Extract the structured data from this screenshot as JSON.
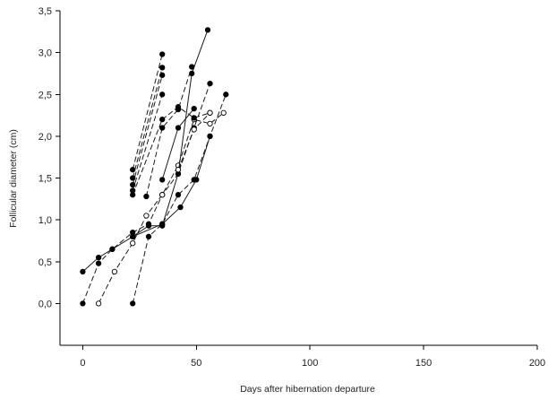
{
  "chart_data": {
    "type": "scatter",
    "title": "",
    "xlabel": "Days after hibernation departure",
    "ylabel": "Follicular diameter (cm)",
    "xlim": [
      -10,
      200
    ],
    "ylim": [
      -0.5,
      3.5
    ],
    "grid": false,
    "x_ticks": [
      0,
      50,
      100,
      150,
      200
    ],
    "x_tick_labels": [
      "0",
      "50",
      "100",
      "150",
      "200"
    ],
    "y_ticks": [
      0,
      0.5,
      1.0,
      1.5,
      2.0,
      2.5,
      3.0,
      3.5
    ],
    "y_tick_labels": [
      "0,0",
      "0,5",
      "1,0",
      "1,5",
      "2,0",
      "2,5",
      "3,0",
      "3,5"
    ],
    "series": [
      {
        "marker": "filled",
        "line": "solid",
        "x": [
          0,
          7,
          13,
          22,
          35,
          43,
          50,
          56
        ],
        "y": [
          0.38,
          0.55,
          0.65,
          0.8,
          0.95,
          1.15,
          1.48,
          2.0
        ]
      },
      {
        "marker": "filled",
        "line": "dashed",
        "x": [
          0,
          7,
          13,
          22,
          29,
          35,
          42,
          49,
          56
        ],
        "y": [
          0.0,
          0.48,
          0.65,
          0.85,
          0.95,
          1.3,
          1.55,
          2.1,
          2.63
        ]
      },
      {
        "marker": "open",
        "line": "dashed",
        "x": [
          7,
          14,
          22,
          28,
          35,
          42,
          49,
          56,
          62
        ],
        "y": [
          0.0,
          0.38,
          0.72,
          1.05,
          1.3,
          1.65,
          2.2,
          2.15,
          2.28
        ]
      },
      {
        "marker": "filled",
        "line": "dashed",
        "x": [
          22,
          29,
          35,
          42,
          49,
          56,
          63
        ],
        "y": [
          0.0,
          0.8,
          0.95,
          1.3,
          1.48,
          2.0,
          2.5
        ]
      },
      {
        "marker": "filled",
        "line": "solid",
        "x": [
          22,
          29,
          35,
          42,
          48,
          55
        ],
        "y": [
          0.8,
          0.93,
          0.93,
          1.55,
          2.75,
          3.27
        ]
      },
      {
        "marker": "filled",
        "line": "dashed",
        "x": [
          22,
          35
        ],
        "y": [
          1.6,
          2.98
        ]
      },
      {
        "marker": "filled",
        "line": "dashed",
        "x": [
          22,
          35
        ],
        "y": [
          1.5,
          2.82
        ]
      },
      {
        "marker": "filled",
        "line": "dashed",
        "x": [
          22,
          35
        ],
        "y": [
          1.42,
          2.73
        ]
      },
      {
        "marker": "filled",
        "line": "dashed",
        "x": [
          22,
          35
        ],
        "y": [
          1.35,
          2.5
        ]
      },
      {
        "marker": "filled",
        "line": "dashed",
        "x": [
          22,
          35,
          42,
          49,
          56
        ],
        "y": [
          1.3,
          2.2,
          2.35,
          2.22,
          2.28
        ]
      },
      {
        "marker": "filled",
        "line": "dashed",
        "x": [
          28,
          35,
          42,
          48
        ],
        "y": [
          1.28,
          2.1,
          2.32,
          2.83
        ]
      },
      {
        "marker": "filled",
        "line": "solid",
        "x": [
          35,
          42,
          49
        ],
        "y": [
          1.48,
          2.1,
          2.33
        ]
      },
      {
        "marker": "open",
        "line": "dashed",
        "x": [
          42,
          49,
          56
        ],
        "y": [
          1.6,
          2.08,
          2.28
        ]
      }
    ]
  }
}
